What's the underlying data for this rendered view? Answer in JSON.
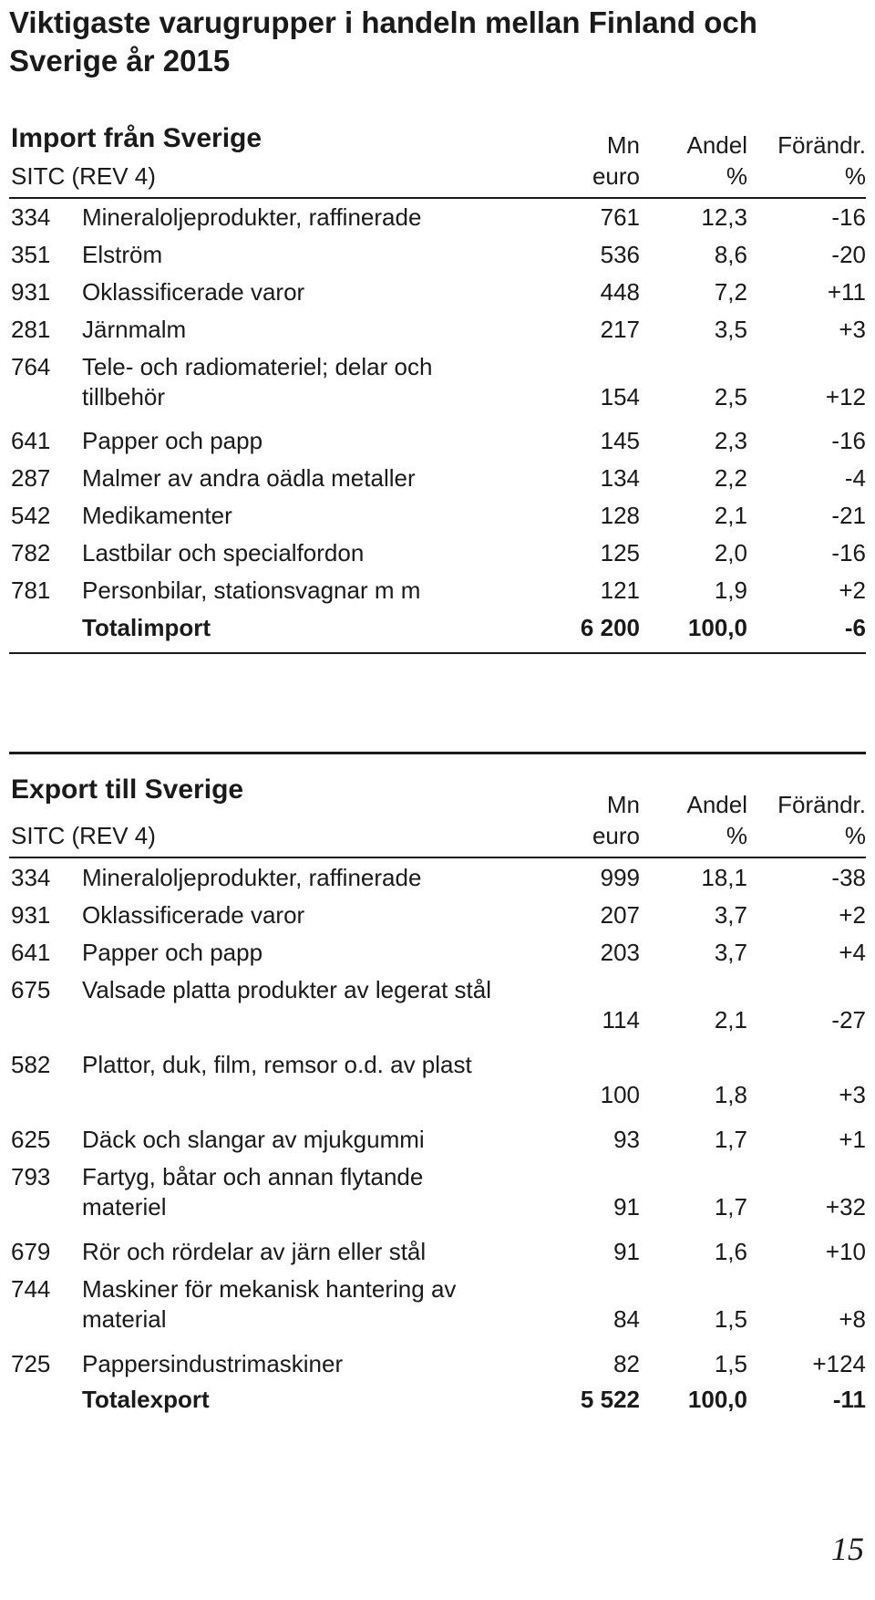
{
  "title": "Viktigaste varugrupper i handeln mellan Finland och Sverige år 2015",
  "import": {
    "heading": "Import från Sverige",
    "sitc_label": "SITC (REV 4)",
    "col_mn": [
      "Mn",
      "euro"
    ],
    "col_andel": [
      "Andel",
      "%"
    ],
    "col_chg": [
      "Förändr.",
      "%"
    ],
    "rows": [
      {
        "code": "334",
        "name": "Mineraloljeprodukter, raffinerade",
        "mn": "761",
        "andel": "12,3",
        "chg": "-16"
      },
      {
        "code": "351",
        "name": "Elström",
        "mn": "536",
        "andel": "8,6",
        "chg": "-20"
      },
      {
        "code": "931",
        "name": "Oklassificerade varor",
        "mn": "448",
        "andel": "7,2",
        "chg": "+11"
      },
      {
        "code": "281",
        "name": "Järnmalm",
        "mn": "217",
        "andel": "3,5",
        "chg": "+3"
      },
      {
        "code": "764",
        "name": "Tele- och radiomateriel; delar och tillbehör",
        "mn": "154",
        "andel": "2,5",
        "chg": "+12"
      },
      {
        "code": "641",
        "name": "Papper och papp",
        "mn": "145",
        "andel": "2,3",
        "chg": "-16"
      },
      {
        "code": "287",
        "name": "Malmer av andra oädla metaller",
        "mn": "134",
        "andel": "2,2",
        "chg": "-4"
      },
      {
        "code": "542",
        "name": "Medikamenter",
        "mn": "128",
        "andel": "2,1",
        "chg": "-21"
      },
      {
        "code": "782",
        "name": "Lastbilar och specialfordon",
        "mn": "125",
        "andel": "2,0",
        "chg": "-16"
      },
      {
        "code": "781",
        "name": "Personbilar, stationsvagnar m m",
        "mn": "121",
        "andel": "1,9",
        "chg": "+2"
      }
    ],
    "total": {
      "label": "Totalimport",
      "mn": "6 200",
      "andel": "100,0",
      "chg": "-6"
    }
  },
  "export": {
    "heading": "Export till Sverige",
    "sitc_label": "SITC (REV 4)",
    "col_mn": [
      "Mn",
      "euro"
    ],
    "col_andel": [
      "Andel",
      "%"
    ],
    "col_chg": [
      "Förändr.",
      "%"
    ],
    "rows": [
      {
        "code": "334",
        "name": "Mineraloljeprodukter, raffinerade",
        "mn": "999",
        "andel": "18,1",
        "chg": "-38"
      },
      {
        "code": "931",
        "name": "Oklassificerade varor",
        "mn": "207",
        "andel": "3,7",
        "chg": "+2"
      },
      {
        "code": "641",
        "name": "Papper och papp",
        "mn": "203",
        "andel": "3,7",
        "chg": "+4"
      },
      {
        "code": "675",
        "name": "Valsade platta produkter av legerat stål",
        "mn": "114",
        "andel": "2,1",
        "chg": "-27"
      },
      {
        "code": "582",
        "name": "Plattor, duk, film, remsor o.d. av plast",
        "mn": "100",
        "andel": "1,8",
        "chg": "+3"
      },
      {
        "code": "625",
        "name": "Däck och slangar av mjukgummi",
        "mn": "93",
        "andel": "1,7",
        "chg": "+1"
      },
      {
        "code": "793",
        "name": "Fartyg, båtar och annan flytande materiel",
        "mn": "91",
        "andel": "1,7",
        "chg": "+32"
      },
      {
        "code": "679",
        "name": "Rör och rördelar av järn eller stål",
        "mn": "91",
        "andel": "1,6",
        "chg": "+10"
      },
      {
        "code": "744",
        "name": "Maskiner för mekanisk hantering av material",
        "mn": "84",
        "andel": "1,5",
        "chg": "+8"
      },
      {
        "code": "725",
        "name": "Pappersindustrimaskiner",
        "mn": "82",
        "andel": "1,5",
        "chg": "+124"
      }
    ],
    "total": {
      "label": "Totalexport",
      "mn": "5 522",
      "andel": "100,0",
      "chg": "-11"
    }
  },
  "page_number": "15"
}
